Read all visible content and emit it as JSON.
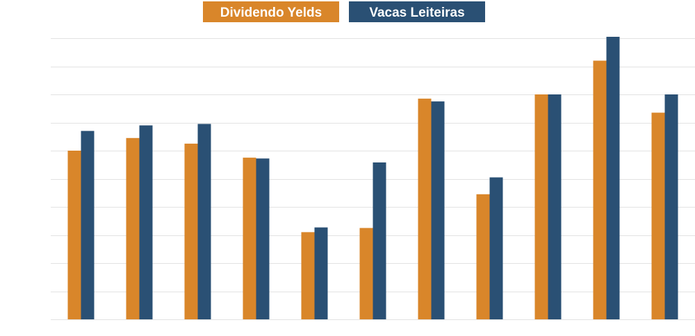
{
  "chart_data": {
    "type": "bar",
    "title": "",
    "xlabel": "",
    "ylabel": "",
    "categories": [
      "",
      "",
      "",
      "",
      "",
      "",
      "",
      "",
      "",
      "",
      ""
    ],
    "series": [
      {
        "name": "Dividendo Yelds",
        "color": "#d9862a",
        "values": [
          6.0,
          6.45,
          6.25,
          5.75,
          3.1,
          3.25,
          7.85,
          4.45,
          8.0,
          9.2,
          7.35
        ]
      },
      {
        "name": "Vacas Leiteiras",
        "color": "#2a5074",
        "values": [
          6.7,
          6.9,
          6.95,
          5.72,
          3.27,
          5.58,
          7.75,
          5.05,
          8.0,
          10.05,
          8.0
        ]
      }
    ],
    "ylim": [
      0,
      10
    ],
    "grid": true,
    "legend_position": "top"
  }
}
